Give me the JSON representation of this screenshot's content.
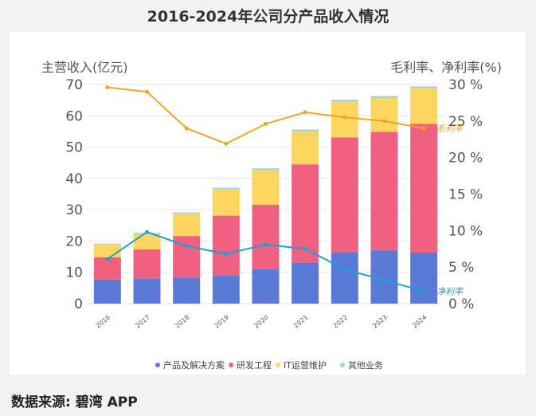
{
  "header": {
    "title": "2016-2024年公司分产品收入情况"
  },
  "footer": {
    "source": "数据来源: 碧湾 APP"
  },
  "colors": {
    "products": "#5b79d6",
    "rnd": "#f06080",
    "it_ops": "#fdd561",
    "other": "#8fd3ec",
    "gross_margin": "#f2a41c",
    "net_margin": "#1aa3d1"
  },
  "chart_data": {
    "type": "bar",
    "categories": [
      "2016",
      "2017",
      "2018",
      "2019",
      "2020",
      "2021",
      "2022",
      "2023",
      "2024"
    ],
    "y_left": {
      "label": "主营收入(亿元)",
      "lim": [
        0,
        70
      ],
      "ticks": [
        "0",
        "10",
        "20",
        "30",
        "40",
        "50",
        "60",
        "70"
      ]
    },
    "y_right": {
      "label": "毛利率、净利率(%)",
      "lim": [
        0,
        30
      ],
      "ticks": [
        "0 %",
        "5 %",
        "10 %",
        "15 %",
        "20 %",
        "25 %",
        "30 %"
      ]
    },
    "series": [
      {
        "name": "产品及解决方案",
        "kind": "bar",
        "values": [
          7.7,
          7.9,
          8.3,
          9.1,
          11.0,
          13.0,
          16.4,
          17.0,
          16.3
        ]
      },
      {
        "name": "研发工程",
        "kind": "bar",
        "values": [
          7.1,
          9.4,
          13.3,
          19.0,
          20.6,
          31.5,
          36.7,
          37.9,
          41.1
        ]
      },
      {
        "name": "IT运营维护",
        "kind": "bar",
        "values": [
          4.2,
          5.0,
          7.1,
          8.5,
          11.1,
          10.6,
          11.5,
          10.9,
          11.5
        ]
      },
      {
        "name": "其他业务",
        "kind": "bar",
        "values": [
          0.2,
          0.3,
          0.4,
          0.4,
          0.5,
          0.5,
          0.5,
          0.5,
          0.5
        ]
      },
      {
        "name": "毛利率",
        "kind": "line",
        "axis": "right",
        "values": [
          29.6,
          29.0,
          24.0,
          21.9,
          24.6,
          26.2,
          25.5,
          25.0,
          24.0
        ]
      },
      {
        "name": "净利率",
        "kind": "line",
        "axis": "right",
        "values": [
          6.1,
          9.8,
          7.9,
          6.8,
          8.1,
          7.5,
          4.7,
          3.2,
          1.7
        ]
      }
    ],
    "legend": [
      "产品及解决方案",
      "研发工程",
      "IT运营维护",
      "其他业务"
    ],
    "legend_position": "bottom",
    "grid": true
  }
}
